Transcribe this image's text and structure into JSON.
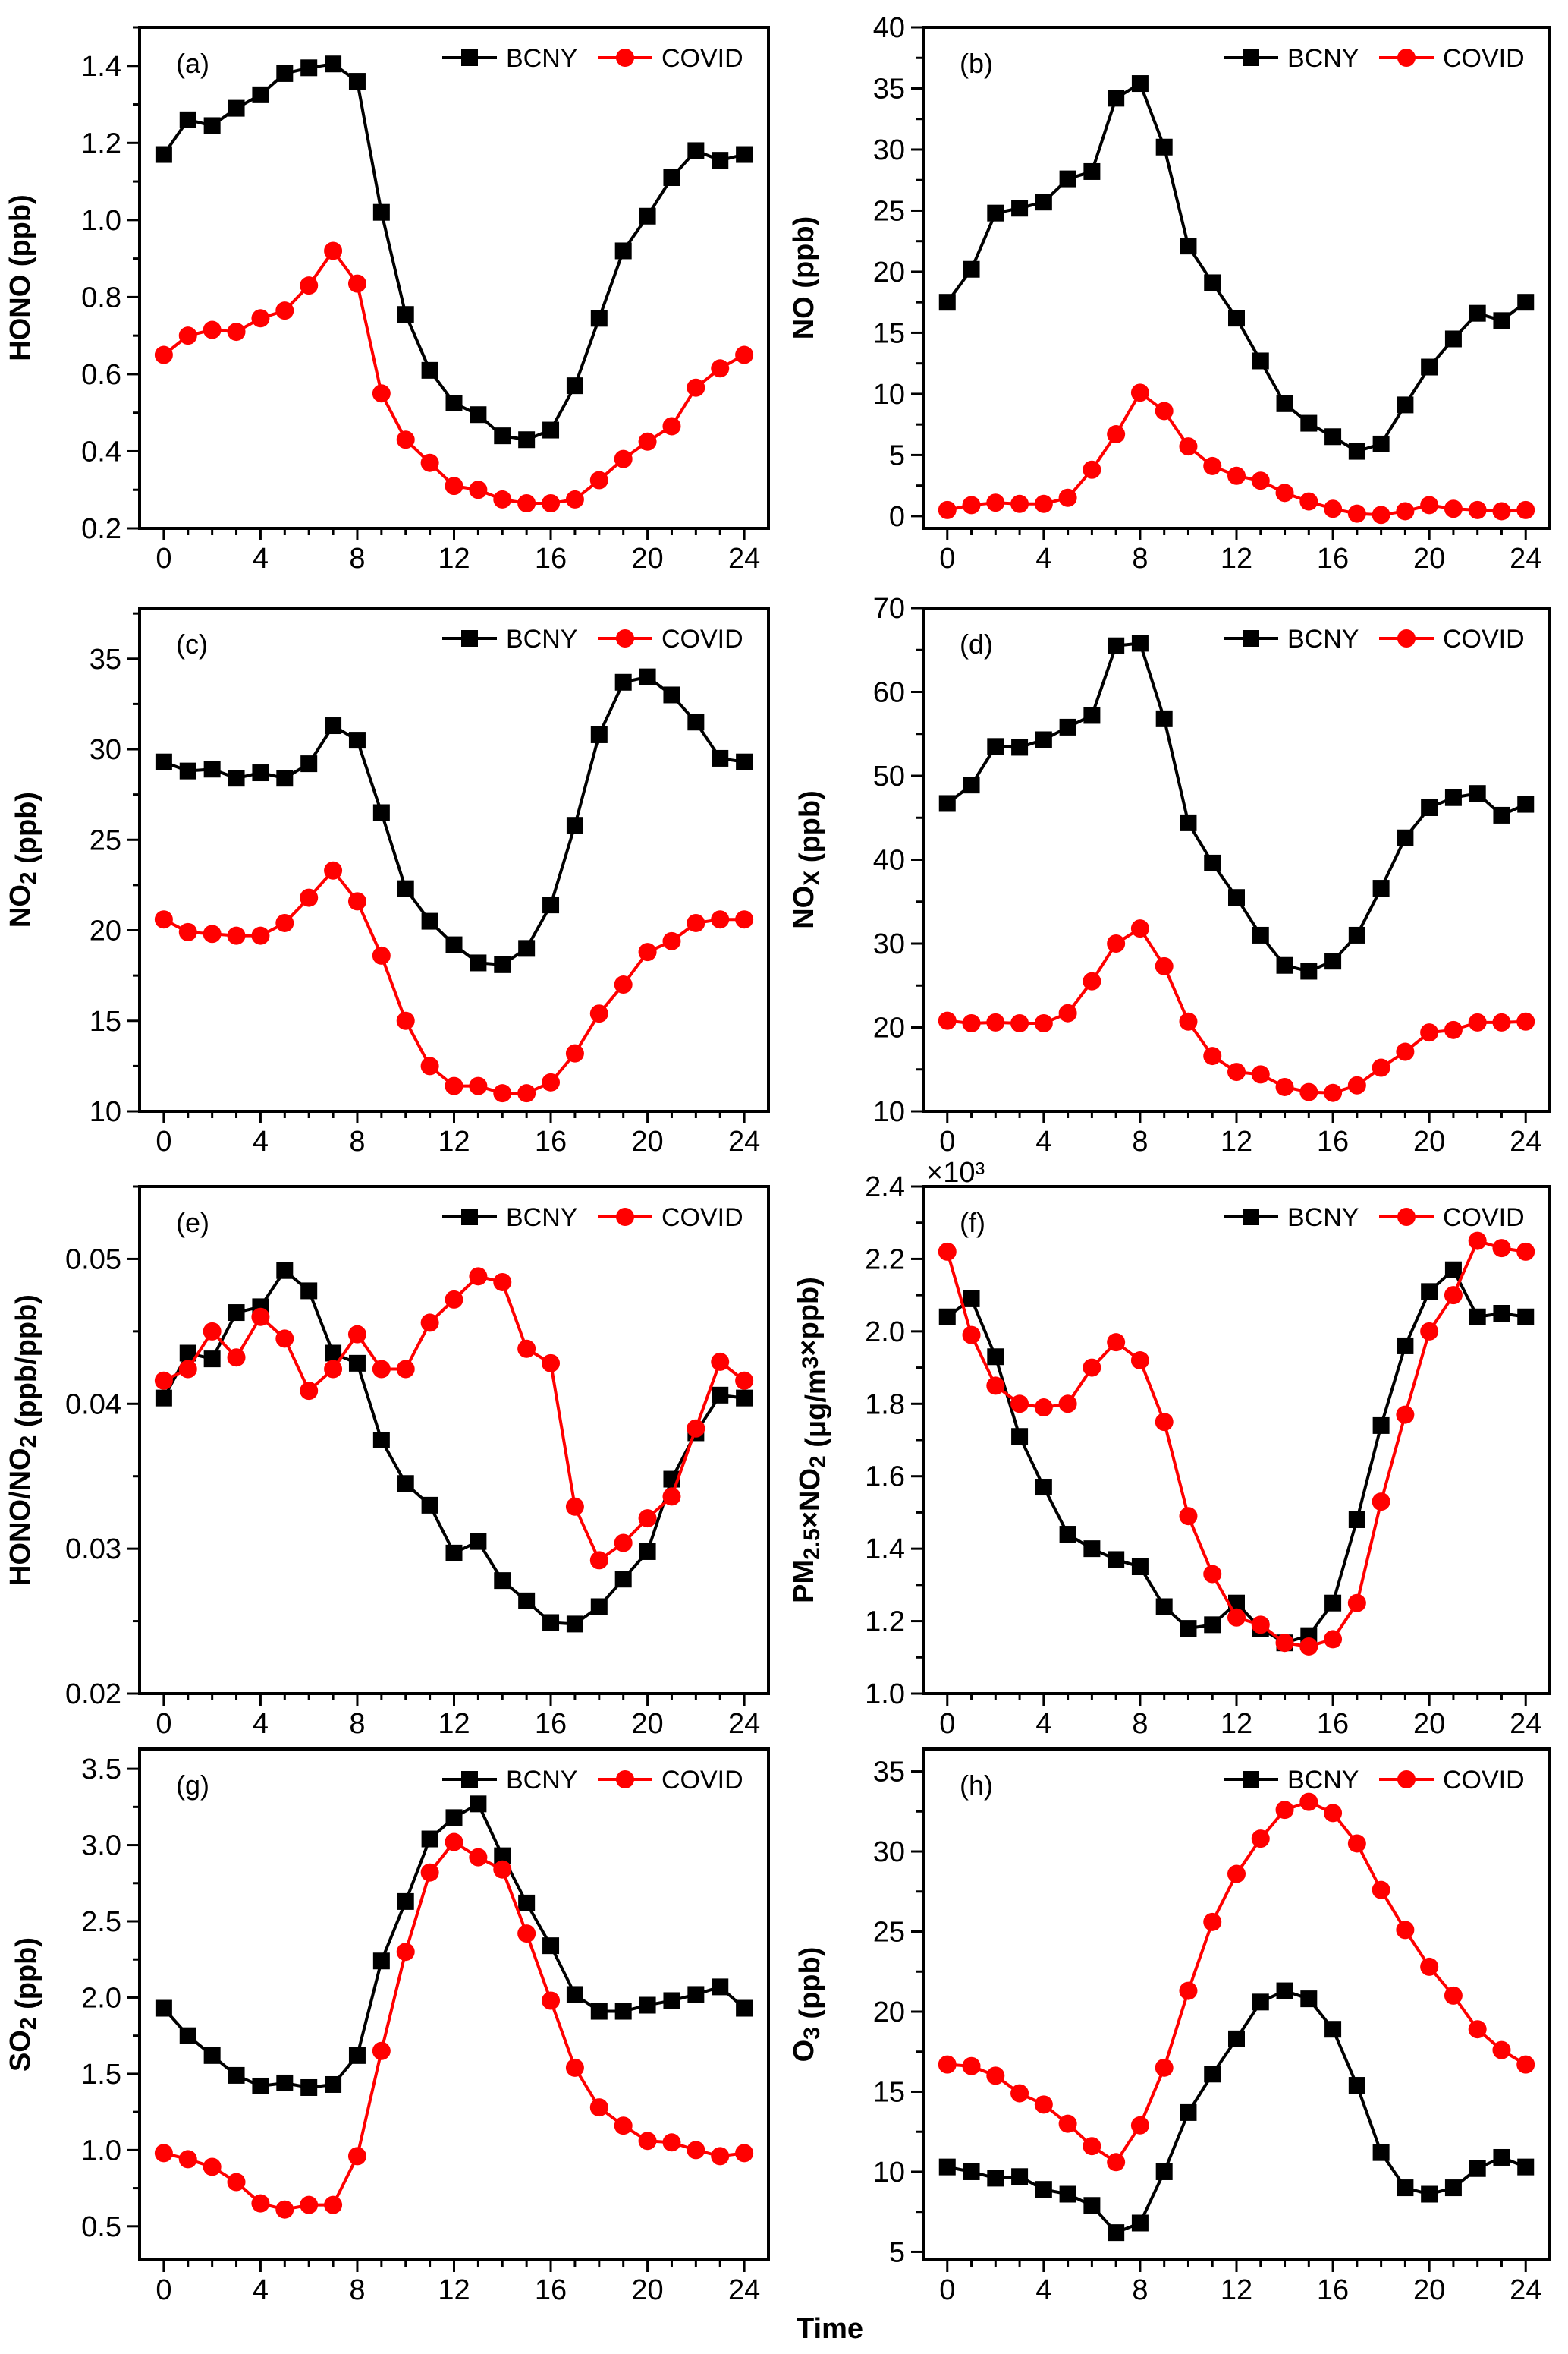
{
  "colors": {
    "BCNY": "#000000",
    "COVID": "#ff0000"
  },
  "xlabel": "Time",
  "chart_data": [
    {
      "type": "line",
      "panel": "(a)",
      "ylabel": "HONO (ppb)",
      "ylabel_parts": [
        {
          "t": "HONO (ppb)"
        }
      ],
      "ylim": [
        0.2,
        1.5
      ],
      "yticks": [
        0.2,
        0.4,
        0.6,
        0.8,
        1.0,
        1.2,
        1.4
      ],
      "ytick_labels": [
        "0.2",
        "0.4",
        "0.6",
        "0.8",
        "1.0",
        "1.2",
        "1.4"
      ],
      "xlim": [
        -1,
        25
      ],
      "xticks": [
        0,
        4,
        8,
        12,
        16,
        20,
        24
      ],
      "xtick_labels": [
        "0",
        "4",
        "8",
        "12",
        "16",
        "20",
        "24"
      ],
      "legend": "top-right",
      "series": [
        {
          "name": "BCNY",
          "values": [
            1.17,
            1.26,
            1.245,
            1.29,
            1.325,
            1.38,
            1.395,
            1.405,
            1.36,
            1.02,
            0.755,
            0.61,
            0.525,
            0.495,
            0.44,
            0.43,
            0.455,
            0.57,
            0.745,
            0.92,
            1.01,
            1.11,
            1.18,
            1.155,
            1.17
          ]
        },
        {
          "name": "COVID",
          "values": [
            0.65,
            0.7,
            0.715,
            0.71,
            0.745,
            0.765,
            0.83,
            0.92,
            0.835,
            0.55,
            0.43,
            0.37,
            0.31,
            0.3,
            0.275,
            0.265,
            0.265,
            0.275,
            0.325,
            0.38,
            0.425,
            0.465,
            0.565,
            0.615,
            0.65
          ]
        }
      ]
    },
    {
      "type": "line",
      "panel": "(b)",
      "ylabel": "NO (ppb)",
      "ylabel_parts": [
        {
          "t": "NO (ppb)"
        }
      ],
      "ylim": [
        -1,
        40
      ],
      "yticks": [
        0,
        5,
        10,
        15,
        20,
        25,
        30,
        35,
        40
      ],
      "ytick_labels": [
        "0",
        "5",
        "10",
        "15",
        "20",
        "25",
        "30",
        "35",
        "40"
      ],
      "xlim": [
        -1,
        25
      ],
      "xticks": [
        0,
        4,
        8,
        12,
        16,
        20,
        24
      ],
      "xtick_labels": [
        "0",
        "4",
        "8",
        "12",
        "16",
        "20",
        "24"
      ],
      "legend": "top-right",
      "series": [
        {
          "name": "BCNY",
          "values": [
            17.5,
            20.2,
            24.8,
            25.2,
            25.7,
            27.6,
            28.2,
            34.2,
            35.4,
            30.2,
            22.1,
            19.1,
            16.2,
            12.7,
            9.2,
            7.6,
            6.5,
            5.3,
            5.9,
            9.1,
            12.2,
            14.5,
            16.6,
            16.0,
            17.5
          ]
        },
        {
          "name": "COVID",
          "values": [
            0.5,
            0.9,
            1.1,
            1.0,
            1.0,
            1.5,
            3.8,
            6.7,
            10.1,
            8.6,
            5.7,
            4.1,
            3.3,
            2.9,
            1.9,
            1.2,
            0.6,
            0.2,
            0.1,
            0.4,
            0.9,
            0.6,
            0.5,
            0.4,
            0.5
          ]
        }
      ]
    },
    {
      "type": "line",
      "panel": "(c)",
      "ylabel": "NO2 (ppb)",
      "ylabel_parts": [
        {
          "t": "NO"
        },
        {
          "t": "2",
          "sub": true
        },
        {
          "t": " (ppb)"
        }
      ],
      "ylim": [
        10,
        37.8
      ],
      "yticks": [
        10,
        15,
        20,
        25,
        30,
        35
      ],
      "ytick_labels": [
        "10",
        "15",
        "20",
        "25",
        "30",
        "35"
      ],
      "xlim": [
        -1,
        25
      ],
      "xticks": [
        0,
        4,
        8,
        12,
        16,
        20,
        24
      ],
      "xtick_labels": [
        "0",
        "4",
        "8",
        "12",
        "16",
        "20",
        "24"
      ],
      "legend": "top-right",
      "series": [
        {
          "name": "BCNY",
          "values": [
            29.3,
            28.8,
            28.9,
            28.4,
            28.7,
            28.4,
            29.2,
            31.3,
            30.5,
            26.5,
            22.3,
            20.5,
            19.2,
            18.2,
            18.1,
            19.0,
            21.4,
            25.8,
            30.8,
            33.7,
            34.0,
            33.0,
            31.5,
            29.5,
            29.3
          ]
        },
        {
          "name": "COVID",
          "values": [
            20.6,
            19.9,
            19.8,
            19.7,
            19.7,
            20.4,
            21.8,
            23.3,
            21.6,
            18.6,
            15.0,
            12.5,
            11.4,
            11.4,
            11.0,
            11.0,
            11.6,
            13.2,
            15.4,
            17.0,
            18.8,
            19.4,
            20.4,
            20.6,
            20.6
          ]
        }
      ]
    },
    {
      "type": "line",
      "panel": "(d)",
      "ylabel": "NOX (ppb)",
      "ylabel_parts": [
        {
          "t": "NO"
        },
        {
          "t": "X",
          "sub": true
        },
        {
          "t": " (ppb)"
        }
      ],
      "ylim": [
        10,
        70
      ],
      "yticks": [
        10,
        20,
        30,
        40,
        50,
        60,
        70
      ],
      "ytick_labels": [
        "10",
        "20",
        "30",
        "40",
        "50",
        "60",
        "70"
      ],
      "xlim": [
        -1,
        25
      ],
      "xticks": [
        0,
        4,
        8,
        12,
        16,
        20,
        24
      ],
      "xtick_labels": [
        "0",
        "4",
        "8",
        "12",
        "16",
        "20",
        "24"
      ],
      "legend": "top-right",
      "series": [
        {
          "name": "BCNY",
          "values": [
            46.7,
            48.9,
            53.5,
            53.4,
            54.3,
            55.8,
            57.2,
            65.5,
            65.8,
            56.8,
            44.4,
            39.6,
            35.5,
            31.0,
            27.4,
            26.7,
            27.9,
            31.0,
            36.6,
            42.6,
            46.2,
            47.4,
            47.9,
            45.3,
            46.6
          ]
        },
        {
          "name": "COVID",
          "values": [
            20.8,
            20.5,
            20.6,
            20.5,
            20.5,
            21.7,
            25.5,
            30.0,
            31.8,
            27.3,
            20.7,
            16.6,
            14.7,
            14.4,
            12.9,
            12.3,
            12.2,
            13.1,
            15.2,
            17.1,
            19.4,
            19.7,
            20.6,
            20.6,
            20.7
          ]
        }
      ]
    },
    {
      "type": "line",
      "panel": "(e)",
      "ylabel": "HONO/NO2 (ppb/ppb)",
      "ylabel_parts": [
        {
          "t": "HONO/NO"
        },
        {
          "t": "2",
          "sub": true
        },
        {
          "t": " (ppb/ppb)"
        }
      ],
      "ylim": [
        0.02,
        0.055
      ],
      "yticks": [
        0.02,
        0.03,
        0.04,
        0.05
      ],
      "ytick_labels": [
        "0.02",
        "0.03",
        "0.04",
        "0.05"
      ],
      "xlim": [
        -1,
        25
      ],
      "xticks": [
        0,
        4,
        8,
        12,
        16,
        20,
        24
      ],
      "xtick_labels": [
        "0",
        "4",
        "8",
        "12",
        "16",
        "20",
        "24"
      ],
      "legend": "top-right",
      "series": [
        {
          "name": "BCNY",
          "values": [
            0.0404,
            0.0435,
            0.0431,
            0.0463,
            0.0467,
            0.0492,
            0.0478,
            0.0435,
            0.0428,
            0.0375,
            0.0345,
            0.033,
            0.0297,
            0.0305,
            0.0278,
            0.0264,
            0.0249,
            0.0248,
            0.026,
            0.0279,
            0.0298,
            0.0348,
            0.038,
            0.0406,
            0.0404
          ]
        },
        {
          "name": "COVID",
          "values": [
            0.0416,
            0.0424,
            0.045,
            0.0432,
            0.046,
            0.0445,
            0.0409,
            0.0424,
            0.0448,
            0.0424,
            0.0424,
            0.0456,
            0.0472,
            0.0488,
            0.0484,
            0.0438,
            0.0428,
            0.0329,
            0.0292,
            0.0304,
            0.0321,
            0.0336,
            0.0383,
            0.0429,
            0.0416
          ]
        }
      ]
    },
    {
      "type": "line",
      "panel": "(f)",
      "ylabel": "PM2.5×NO2 (μg/m3×ppb)",
      "ylabel_parts": [
        {
          "t": "PM"
        },
        {
          "t": "2.5",
          "sub": true
        },
        {
          "t": "×NO"
        },
        {
          "t": "2",
          "sub": true
        },
        {
          "t": " (μg/m"
        },
        {
          "t": "3",
          "sup": true
        },
        {
          "t": "×ppb)"
        }
      ],
      "y_multiplier": "×10³",
      "ylim": [
        1.0,
        2.4
      ],
      "yticks": [
        1.0,
        1.2,
        1.4,
        1.6,
        1.8,
        2.0,
        2.2,
        2.4
      ],
      "ytick_labels": [
        "1.0",
        "1.2",
        "1.4",
        "1.6",
        "1.8",
        "2.0",
        "2.2",
        "2.4"
      ],
      "xlim": [
        -1,
        25
      ],
      "xticks": [
        0,
        4,
        8,
        12,
        16,
        20,
        24
      ],
      "xtick_labels": [
        "0",
        "4",
        "8",
        "12",
        "16",
        "20",
        "24"
      ],
      "legend": "top-right",
      "series": [
        {
          "name": "BCNY",
          "values": [
            2.04,
            2.09,
            1.93,
            1.71,
            1.57,
            1.44,
            1.4,
            1.37,
            1.35,
            1.24,
            1.18,
            1.19,
            1.25,
            1.18,
            1.14,
            1.16,
            1.25,
            1.48,
            1.74,
            1.96,
            2.11,
            2.17,
            2.04,
            2.05,
            2.04
          ]
        },
        {
          "name": "COVID",
          "values": [
            2.22,
            1.99,
            1.85,
            1.8,
            1.79,
            1.8,
            1.9,
            1.97,
            1.92,
            1.75,
            1.49,
            1.33,
            1.21,
            1.19,
            1.14,
            1.13,
            1.15,
            1.25,
            1.53,
            1.77,
            2.0,
            2.1,
            2.25,
            2.23,
            2.22
          ]
        }
      ]
    },
    {
      "type": "line",
      "panel": "(g)",
      "ylabel": "SO2 (ppb)",
      "ylabel_parts": [
        {
          "t": "SO"
        },
        {
          "t": "2",
          "sub": true
        },
        {
          "t": " (ppb)"
        }
      ],
      "ylim": [
        0.28,
        3.63
      ],
      "yticks": [
        0.5,
        1.0,
        1.5,
        2.0,
        2.5,
        3.0,
        3.5
      ],
      "ytick_labels": [
        "0.5",
        "1.0",
        "1.5",
        "2.0",
        "2.5",
        "3.0",
        "3.5"
      ],
      "xlim": [
        -1,
        25
      ],
      "xticks": [
        0,
        4,
        8,
        12,
        16,
        20,
        24
      ],
      "xtick_labels": [
        "0",
        "4",
        "8",
        "12",
        "16",
        "20",
        "24"
      ],
      "legend": "top-right",
      "series": [
        {
          "name": "BCNY",
          "values": [
            1.93,
            1.75,
            1.62,
            1.49,
            1.42,
            1.44,
            1.41,
            1.43,
            1.62,
            2.24,
            2.63,
            3.04,
            3.18,
            3.27,
            2.93,
            2.62,
            2.34,
            2.02,
            1.91,
            1.91,
            1.95,
            1.98,
            2.02,
            2.07,
            1.93
          ]
        },
        {
          "name": "COVID",
          "values": [
            0.98,
            0.94,
            0.89,
            0.79,
            0.65,
            0.61,
            0.64,
            0.64,
            0.96,
            1.65,
            2.3,
            2.82,
            3.02,
            2.92,
            2.84,
            2.42,
            1.98,
            1.54,
            1.28,
            1.16,
            1.06,
            1.05,
            1.0,
            0.96,
            0.98
          ]
        }
      ]
    },
    {
      "type": "line",
      "panel": "(h)",
      "ylabel": "O3 (ppb)",
      "ylabel_parts": [
        {
          "t": "O"
        },
        {
          "t": "3",
          "sub": true
        },
        {
          "t": " (ppb)"
        }
      ],
      "ylim": [
        4.5,
        36.4
      ],
      "yticks": [
        5,
        10,
        15,
        20,
        25,
        30,
        35
      ],
      "ytick_labels": [
        "5",
        "10",
        "15",
        "20",
        "25",
        "30",
        "35"
      ],
      "xlim": [
        -1,
        25
      ],
      "xticks": [
        0,
        4,
        8,
        12,
        16,
        20,
        24
      ],
      "xtick_labels": [
        "0",
        "4",
        "8",
        "12",
        "16",
        "20",
        "24"
      ],
      "legend": "top-right",
      "series": [
        {
          "name": "BCNY",
          "values": [
            10.3,
            10.0,
            9.6,
            9.7,
            8.9,
            8.6,
            7.9,
            6.2,
            6.8,
            10.0,
            13.7,
            16.1,
            18.3,
            20.6,
            21.3,
            20.8,
            18.9,
            15.4,
            11.2,
            9.0,
            8.6,
            9.0,
            10.2,
            10.9,
            10.3
          ]
        },
        {
          "name": "COVID",
          "values": [
            16.7,
            16.6,
            16.0,
            14.9,
            14.2,
            13.0,
            11.6,
            10.6,
            12.9,
            16.5,
            21.3,
            25.6,
            28.6,
            30.8,
            32.6,
            33.1,
            32.4,
            30.5,
            27.6,
            25.1,
            22.8,
            21.0,
            18.9,
            17.6,
            16.7
          ]
        }
      ]
    }
  ]
}
